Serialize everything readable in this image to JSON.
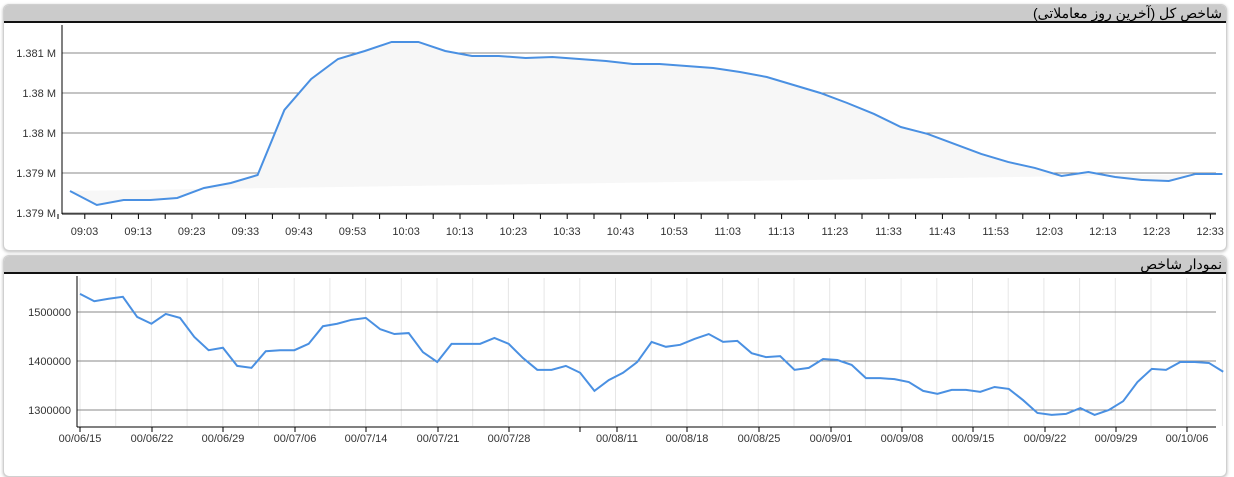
{
  "chart_data": [
    {
      "type": "area",
      "title": "شاخص کل (آخرین روز معاملاتی)",
      "y_tick_labels": [
        "1.381 M",
        "1.38 M",
        "1.38 M",
        "1.379 M",
        "1.379 M"
      ],
      "y_ticks": [
        1381000,
        1380500,
        1380000,
        1379500,
        1379000
      ],
      "ylim": [
        1379000,
        1381000
      ],
      "x_tick_labels": [
        "09:03",
        "09:13",
        "09:23",
        "09:33",
        "09:43",
        "09:53",
        "10:03",
        "10:13",
        "10:23",
        "10:33",
        "10:43",
        "10:53",
        "11:03",
        "11:13",
        "11:23",
        "11:33",
        "11:43",
        "11:53",
        "12:03",
        "12:13",
        "12:23",
        "12:33"
      ],
      "values": [
        1379275,
        1379100,
        1379163,
        1379163,
        1379188,
        1379313,
        1379375,
        1379475,
        1380288,
        1380675,
        1380925,
        1381025,
        1381138,
        1381138,
        1381025,
        1380963,
        1380963,
        1380938,
        1380950,
        1380925,
        1380900,
        1380863,
        1380863,
        1380838,
        1380813,
        1380763,
        1380700,
        1380600,
        1380500,
        1380375,
        1380238,
        1380075,
        1379988,
        1379863,
        1379738,
        1379638,
        1379563,
        1379463,
        1379513,
        1379450,
        1379413,
        1379400,
        1379488,
        1379488
      ],
      "line_color": "#4a90e2",
      "fill_color": "#f7f7f7",
      "grid": true
    },
    {
      "type": "line",
      "title": "نمودار شاخص",
      "y_tick_labels": [
        "1500000",
        "1400000",
        "1300000"
      ],
      "y_ticks": [
        1500000,
        1400000,
        1300000
      ],
      "ylim": [
        1265000,
        1560000
      ],
      "x_tick_labels": [
        "00/06/15",
        "00/06/22",
        "00/06/29",
        "00/07/06",
        "00/07/14",
        "00/07/21",
        "00/07/28",
        "",
        "00/08/11",
        "00/08/18",
        "00/08/25",
        "00/09/01",
        "00/09/08",
        "00/09/15",
        "00/09/22",
        "00/09/29",
        "00/10/06"
      ],
      "values": [
        1537000,
        1522000,
        1527000,
        1531000,
        1490000,
        1476000,
        1496000,
        1488000,
        1449000,
        1422000,
        1427000,
        1390000,
        1386000,
        1420000,
        1422000,
        1422000,
        1435000,
        1471000,
        1476000,
        1484000,
        1488000,
        1465000,
        1455000,
        1457000,
        1418000,
        1398000,
        1435000,
        1435000,
        1435000,
        1447000,
        1435000,
        1406000,
        1382000,
        1382000,
        1390000,
        1376000,
        1339000,
        1361000,
        1376000,
        1398000,
        1439000,
        1429000,
        1433000,
        1445000,
        1455000,
        1439000,
        1441000,
        1416000,
        1408000,
        1410000,
        1382000,
        1386000,
        1404000,
        1402000,
        1392000,
        1365000,
        1365000,
        1363000,
        1357000,
        1339000,
        1333000,
        1341000,
        1341000,
        1337000,
        1347000,
        1343000,
        1320000,
        1294000,
        1290000,
        1292000,
        1304000,
        1290000,
        1300000,
        1318000,
        1357000,
        1384000,
        1382000,
        1398000,
        1398000,
        1396000,
        1378000
      ],
      "line_color": "#4a90e2",
      "grid": true
    }
  ]
}
